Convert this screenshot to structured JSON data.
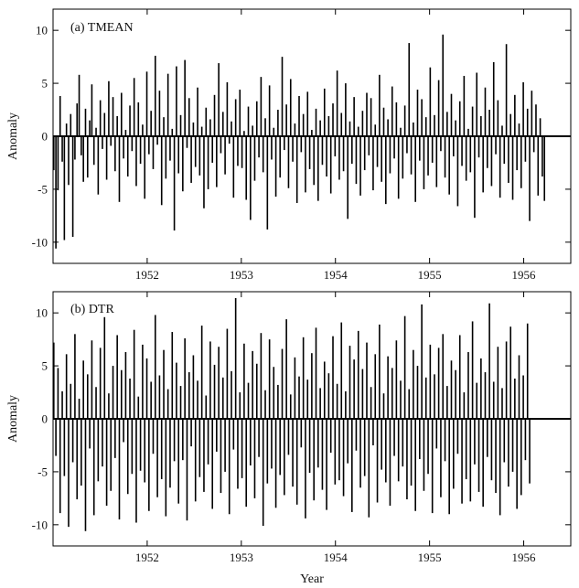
{
  "chart_data": [
    {
      "type": "bar",
      "title": "(a) TMEAN",
      "ylabel": "Anomaly",
      "xlabel": "",
      "xlim": [
        1951.0,
        1956.5
      ],
      "ylim": [
        -12,
        12
      ],
      "yticks": [
        -10,
        -5,
        0,
        5,
        10
      ],
      "xticks": [
        1952,
        1953,
        1954,
        1955,
        1956
      ],
      "grid": false,
      "legend": "none",
      "color": "#000000",
      "series": [
        {
          "x_start": 1951.0,
          "x_step": 0.00274,
          "values": [
            -3.2,
            -10.6,
            -5.1,
            3.8,
            -2.4,
            -9.8,
            1.2,
            -4.6,
            2.1,
            -9.5,
            -2.2,
            3.1,
            5.8,
            -1.8,
            -4.3,
            2.6,
            -3.9,
            1.5,
            4.9,
            -2.7,
            0.8,
            -5.5,
            3.4,
            -1.2,
            2.2,
            -4.1,
            5.2,
            -0.9,
            3.7,
            -3.3,
            1.9,
            -6.2,
            4.1,
            -2.1,
            0.6,
            -3.8,
            2.9,
            -1.4,
            5.5,
            -4.7,
            3.2,
            -2.6,
            1.1,
            -5.9,
            6.1,
            -1.7,
            2.4,
            -3.1,
            7.6,
            -0.8,
            4.3,
            -6.5,
            1.8,
            -4.0,
            5.9,
            -2.3,
            0.7,
            -8.9,
            6.6,
            -3.5,
            2.0,
            -5.2,
            7.2,
            -1.1,
            3.6,
            -4.4,
            1.3,
            -2.9,
            4.6,
            -3.7,
            0.9,
            -6.8,
            2.7,
            -5.0,
            1.6,
            -2.5,
            3.9,
            -4.8,
            6.9,
            -1.6,
            2.3,
            -3.6,
            5.1,
            -0.7,
            1.4,
            -5.8,
            3.5,
            -2.8,
            4.4,
            -3.0,
            0.5,
            -6.0,
            2.8,
            -7.9,
            1.0,
            -4.2,
            3.3,
            -2.0,
            5.6,
            -3.4,
            1.7,
            -8.8,
            4.8,
            -2.2,
            0.8,
            -5.7,
            2.5,
            -3.9,
            7.5,
            -1.3,
            3.0,
            -4.9,
            5.4,
            -2.4,
            1.2,
            -6.3,
            3.8,
            -1.5,
            2.1,
            -5.3,
            4.2,
            -3.1,
            0.6,
            -4.6,
            2.6,
            -6.1,
            1.5,
            -2.7,
            4.5,
            -3.8,
            1.9,
            -5.4,
            3.1,
            -1.9,
            6.2,
            -4.1,
            2.2,
            -3.3,
            5.0,
            -7.8,
            1.4,
            -2.6,
            3.7,
            -4.5,
            0.9,
            -5.6,
            2.4,
            -3.2,
            4.1,
            -1.8,
            3.6,
            -5.1,
            1.1,
            -2.9,
            5.8,
            -4.3,
            2.7,
            -6.4,
            1.6,
            -3.5,
            4.7,
            -2.1,
            3.2,
            -5.9,
            0.8,
            -4.0,
            2.9,
            -1.6,
            8.8,
            -3.6,
            1.3,
            -6.2,
            4.4,
            -2.3,
            3.5,
            -5.0,
            1.8,
            -3.7,
            6.5,
            -2.5,
            2.0,
            -4.8,
            5.3,
            -1.4,
            9.6,
            -3.9,
            2.3,
            -5.5,
            4.0,
            -1.9,
            1.5,
            -6.6,
            3.3,
            -2.8,
            5.7,
            -4.2,
            0.7,
            -3.4,
            2.8,
            -7.7,
            6.0,
            -2.0,
            1.9,
            -5.3,
            4.6,
            -3.0,
            2.5,
            -4.7,
            7.0,
            -1.7,
            3.4,
            -5.8,
            1.0,
            -2.6,
            8.7,
            -4.4,
            2.1,
            -6.0,
            3.9,
            -3.2,
            1.2,
            -4.9,
            5.1,
            -2.4,
            2.6,
            -8.0,
            4.3,
            -1.5,
            3.0,
            -5.6,
            1.7,
            -3.8,
            -6.1
          ]
        }
      ]
    },
    {
      "type": "bar",
      "title": "(b) DTR",
      "ylabel": "Anomaly",
      "xlabel": "Year",
      "xlim": [
        1951.0,
        1956.5
      ],
      "ylim": [
        -12,
        12
      ],
      "yticks": [
        -10,
        -5,
        0,
        5,
        10
      ],
      "xticks": [
        1952,
        1953,
        1954,
        1955,
        1956
      ],
      "grid": false,
      "legend": "none",
      "color": "#000000",
      "series": [
        {
          "x_start": 1951.0,
          "x_step": 0.00274,
          "values": [
            7.2,
            -3.5,
            4.8,
            -8.9,
            2.6,
            -5.4,
            6.1,
            -10.2,
            3.3,
            -4.1,
            8.0,
            -7.6,
            1.9,
            -6.3,
            5.5,
            -10.6,
            4.2,
            -2.8,
            7.4,
            -9.1,
            3.0,
            -5.9,
            6.7,
            -4.5,
            9.6,
            -8.2,
            2.4,
            -6.8,
            5.0,
            -3.7,
            7.9,
            -9.5,
            4.6,
            -2.2,
            6.3,
            -7.1,
            3.8,
            -5.2,
            8.4,
            -9.8,
            2.1,
            -4.9,
            7.0,
            -6.0,
            5.7,
            -8.7,
            3.5,
            -3.3,
            9.8,
            -7.4,
            4.1,
            -5.7,
            6.5,
            -9.2,
            2.8,
            -6.5,
            8.2,
            -4.0,
            5.3,
            -8.0,
            3.1,
            -3.9,
            7.6,
            -9.6,
            4.4,
            -2.6,
            6.0,
            -7.8,
            3.6,
            -5.5,
            8.8,
            -6.9,
            2.2,
            -4.3,
            7.3,
            -8.5,
            5.1,
            -3.1,
            6.8,
            -7.0,
            3.9,
            -5.0,
            8.5,
            -9.0,
            4.5,
            -2.9,
            11.4,
            -6.6,
            2.5,
            -5.6,
            7.1,
            -8.3,
            3.4,
            -4.4,
            6.4,
            -7.5,
            5.2,
            -3.6,
            8.1,
            -10.1,
            2.7,
            -6.1,
            7.5,
            -4.7,
            4.9,
            -8.4,
            3.2,
            -5.3,
            6.6,
            -7.2,
            9.4,
            -3.4,
            2.3,
            -6.4,
            5.8,
            -8.1,
            4.0,
            -2.7,
            7.7,
            -9.4,
            3.7,
            -5.1,
            6.2,
            -7.7,
            8.6,
            -4.6,
            2.9,
            -6.7,
            5.4,
            -8.6,
            4.3,
            -3.2,
            7.8,
            -6.2,
            3.3,
            -5.8,
            9.1,
            -7.3,
            2.6,
            -4.2,
            6.9,
            -8.8,
            5.6,
            -3.0,
            8.3,
            -6.5,
            4.7,
            -5.4,
            7.2,
            -9.3,
            3.0,
            -2.5,
            6.1,
            -7.9,
            8.9,
            -4.8,
            2.4,
            -6.0,
            5.9,
            -8.2,
            4.8,
            -3.5,
            7.4,
            -5.9,
            3.6,
            -4.5,
            9.7,
            -7.6,
            2.8,
            -6.3,
            6.5,
            -8.7,
            5.0,
            -3.8,
            10.8,
            -6.8,
            3.9,
            -5.2,
            7.0,
            -8.9,
            4.2,
            -2.8,
            6.7,
            -7.4,
            8.0,
            -4.0,
            3.1,
            -9.0,
            5.5,
            -6.6,
            4.6,
            -3.3,
            7.9,
            -8.0,
            2.5,
            -5.7,
            6.3,
            -7.8,
            9.2,
            -4.3,
            3.4,
            -6.9,
            5.7,
            -8.3,
            4.4,
            -3.6,
            10.9,
            -5.8,
            3.5,
            -7.0,
            6.8,
            -9.1,
            2.9,
            -4.1,
            7.3,
            -6.4,
            8.7,
            -5.0,
            3.8,
            -8.5,
            6.0,
            -7.2,
            4.1,
            -3.9,
            9.0,
            -6.1
          ]
        }
      ]
    }
  ]
}
